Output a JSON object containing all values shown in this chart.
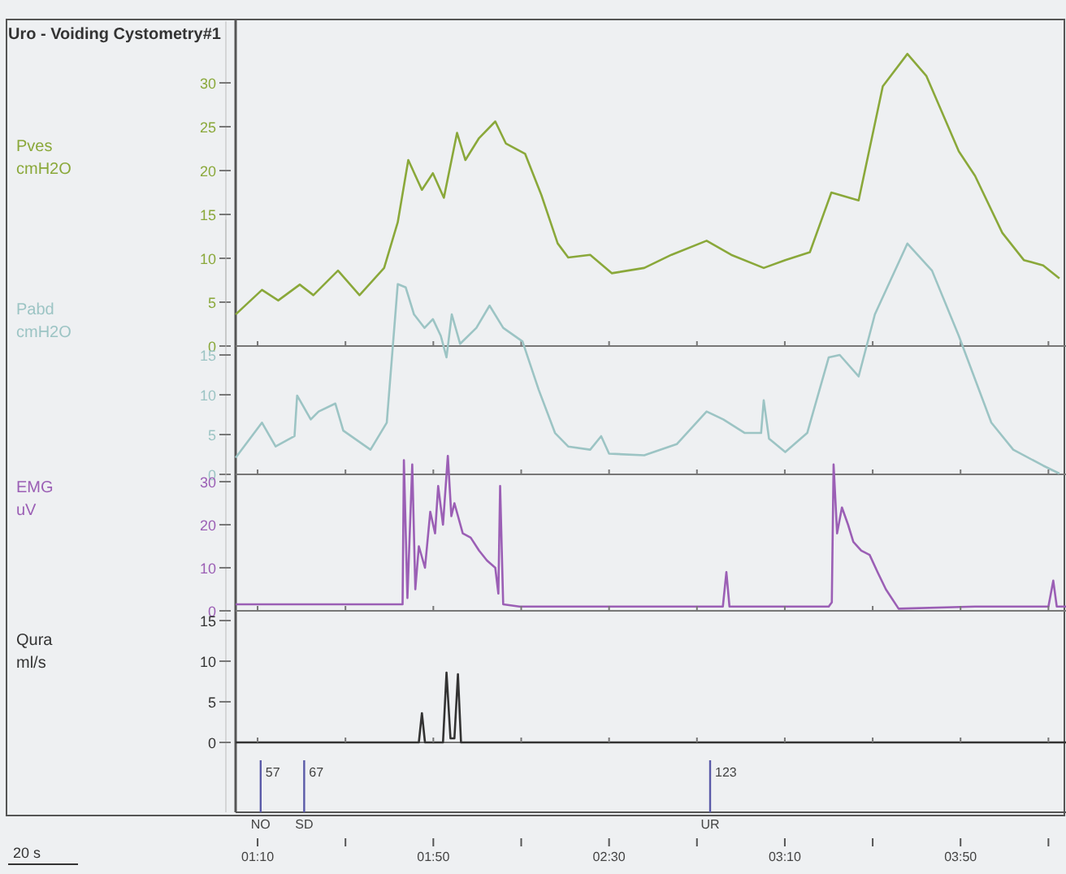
{
  "chart_data": [
    {
      "type": "line",
      "title": "Uro - Voiding Cystometry#1",
      "ylabel": "Pves cmH2O",
      "color": "#8aa83a",
      "tick_labels": "y",
      "x": [
        65,
        71,
        74.7,
        79.6,
        82.7,
        88.3,
        93.2,
        98.8,
        101.9,
        104.3,
        107.4,
        109.9,
        112.4,
        115.4,
        117.3,
        120.4,
        124.1,
        126.5,
        130.9,
        134.6,
        138.3,
        140.7,
        145.7,
        150.6,
        158,
        164.2,
        172.2,
        177.8,
        185.2,
        190.1,
        195.7,
        200.6,
        206.8,
        212.3,
        217.9,
        222.2,
        229.6,
        233.3,
        239.5,
        244.4,
        248.8,
        252.5
      ],
      "values": [
        3.6,
        6.4,
        5.2,
        7.0,
        5.8,
        8.6,
        5.8,
        8.9,
        14.1,
        21.2,
        17.8,
        19.7,
        16.9,
        24.3,
        21.2,
        23.7,
        25.6,
        23.1,
        21.9,
        17.2,
        11.7,
        10.1,
        10.4,
        8.3,
        8.9,
        10.4,
        12.0,
        10.4,
        8.9,
        9.8,
        10.7,
        17.5,
        16.6,
        29.6,
        33.3,
        30.8,
        22.2,
        19.4,
        12.9,
        9.8,
        9.2,
        7.7
      ],
      "xlim": [
        65,
        254
      ],
      "ylim": [
        0,
        37
      ],
      "yticks": [
        0,
        5,
        10,
        15,
        20,
        25,
        30
      ],
      "xticks": [
        {
          "value": 70,
          "label": null
        },
        {
          "value": 90,
          "label": null
        },
        {
          "value": 110,
          "label": null
        },
        {
          "value": 130,
          "label": null
        },
        {
          "value": 150,
          "label": null
        },
        {
          "value": 170,
          "label": null
        },
        {
          "value": 190,
          "label": null
        },
        {
          "value": 210,
          "label": null
        },
        {
          "value": 230,
          "label": null
        },
        {
          "value": 250,
          "label": null
        }
      ]
    },
    {
      "type": "line",
      "ylabel": "Pabd cmH2O",
      "color": "#9cc4c4",
      "tick_labels": "y",
      "x": [
        65,
        71,
        74.1,
        78.4,
        79,
        82.1,
        83.9,
        87.7,
        89.5,
        95.7,
        99.4,
        101.9,
        103.7,
        105.6,
        108,
        109.9,
        111.7,
        113,
        114.2,
        116.1,
        119.8,
        122.8,
        125.9,
        130.3,
        134,
        137.7,
        140.7,
        145.7,
        148.2,
        150,
        158,
        165.4,
        172.2,
        176,
        180.9,
        184.6,
        185.2,
        186.4,
        190.1,
        195.1,
        200,
        202.5,
        206.8,
        210.5,
        217.9,
        223.5,
        229.6,
        237,
        242,
        248.8,
        252.5
      ],
      "values": [
        2.1,
        6.5,
        3.5,
        4.8,
        9.9,
        6.9,
        7.9,
        8.9,
        5.5,
        3.1,
        6.5,
        23.9,
        23.5,
        20.1,
        18.4,
        19.5,
        17.4,
        14.7,
        20.1,
        16.4,
        18.4,
        21.2,
        18.4,
        16.7,
        10.6,
        5.2,
        3.5,
        3.1,
        4.8,
        2.6,
        2.4,
        3.8,
        7.9,
        6.9,
        5.2,
        5.2,
        9.3,
        4.5,
        2.8,
        5.2,
        14.7,
        15.0,
        12.3,
        20.1,
        29.0,
        25.6,
        17.4,
        6.5,
        3.1,
        1.1,
        0.1
      ],
      "xlim": [
        65,
        254
      ],
      "ylim": [
        0,
        32
      ],
      "yticks": [
        0,
        5,
        10,
        15
      ],
      "xticks": [
        {
          "value": 70,
          "label": null
        },
        {
          "value": 90,
          "label": null
        },
        {
          "value": 110,
          "label": null
        },
        {
          "value": 130,
          "label": null
        },
        {
          "value": 150,
          "label": null
        },
        {
          "value": 170,
          "label": null
        },
        {
          "value": 190,
          "label": null
        },
        {
          "value": 210,
          "label": null
        },
        {
          "value": 230,
          "label": null
        },
        {
          "value": 250,
          "label": null
        }
      ]
    },
    {
      "type": "line",
      "ylabel": "EMG uV",
      "color": "#9b5fb5",
      "tick_labels": "y",
      "x": [
        65,
        101.9,
        103,
        103.3,
        104.1,
        105.2,
        105.9,
        106.7,
        108.1,
        109.3,
        110.4,
        111.1,
        112.2,
        113.3,
        114.1,
        114.8,
        116.7,
        118.5,
        120.4,
        122.2,
        124.1,
        124.8,
        125.2,
        125.9,
        129.6,
        175.9,
        176.7,
        177.4,
        200,
        200.7,
        201.1,
        201.9,
        203,
        204.4,
        205.6,
        207.4,
        209.3,
        211.1,
        213,
        215.9,
        233.3,
        250,
        251.1,
        251.9,
        254
      ],
      "values": [
        1.5,
        1.5,
        1.5,
        35,
        3,
        34,
        5,
        15,
        10,
        23,
        18,
        29,
        20,
        36,
        22,
        25,
        18,
        17,
        14,
        11.7,
        10,
        4,
        29,
        1.5,
        1,
        1,
        9,
        1,
        1,
        2,
        34,
        18,
        24,
        20,
        16,
        14,
        13,
        9,
        5,
        0.5,
        1,
        1,
        7,
        1,
        1
      ],
      "xlim": [
        65,
        254
      ],
      "ylim": [
        0,
        40
      ],
      "yticks": [
        0,
        10,
        20,
        30
      ],
      "xticks": [
        {
          "value": 70,
          "label": null
        },
        {
          "value": 90,
          "label": null
        },
        {
          "value": 110,
          "label": null
        },
        {
          "value": 130,
          "label": null
        },
        {
          "value": 150,
          "label": null
        },
        {
          "value": 170,
          "label": null
        },
        {
          "value": 190,
          "label": null
        },
        {
          "value": 210,
          "label": null
        },
        {
          "value": 230,
          "label": null
        },
        {
          "value": 250,
          "label": null
        }
      ]
    },
    {
      "type": "line",
      "ylabel": "Qura ml/s",
      "color": "#333333",
      "x": [
        65,
        106.7,
        107.4,
        108.1,
        112.2,
        113,
        113.9,
        114.8,
        115.6,
        116.3,
        254
      ],
      "values": [
        0,
        0,
        3.6,
        0,
        0,
        8.6,
        0.5,
        0.5,
        8.4,
        0,
        0
      ],
      "xlim": [
        65,
        254
      ],
      "ylim": [
        -8.6,
        16
      ],
      "yticks": [
        0,
        5,
        10,
        15
      ],
      "xticks": [
        {
          "value": 70,
          "label": "01:10"
        },
        {
          "value": 90,
          "label": null
        },
        {
          "value": 110,
          "label": "01:50"
        },
        {
          "value": 130,
          "label": null
        },
        {
          "value": 150,
          "label": "02:30"
        },
        {
          "value": 170,
          "label": null
        },
        {
          "value": 190,
          "label": "03:10"
        },
        {
          "value": 210,
          "label": null
        },
        {
          "value": 230,
          "label": "03:50"
        },
        {
          "value": 250,
          "label": null
        }
      ],
      "ref_lines": [
        {
          "axis": "x",
          "value": 70.7,
          "label": "NO",
          "color": "#5a5aa8"
        },
        {
          "axis": "x",
          "value": 80.6,
          "label": "SD",
          "color": "#5a5aa8"
        },
        {
          "axis": "x",
          "value": 173,
          "label": "UR",
          "color": "#5a5aa8"
        }
      ],
      "annotations": [
        "57",
        "67",
        "123",
        "20 s"
      ]
    }
  ]
}
